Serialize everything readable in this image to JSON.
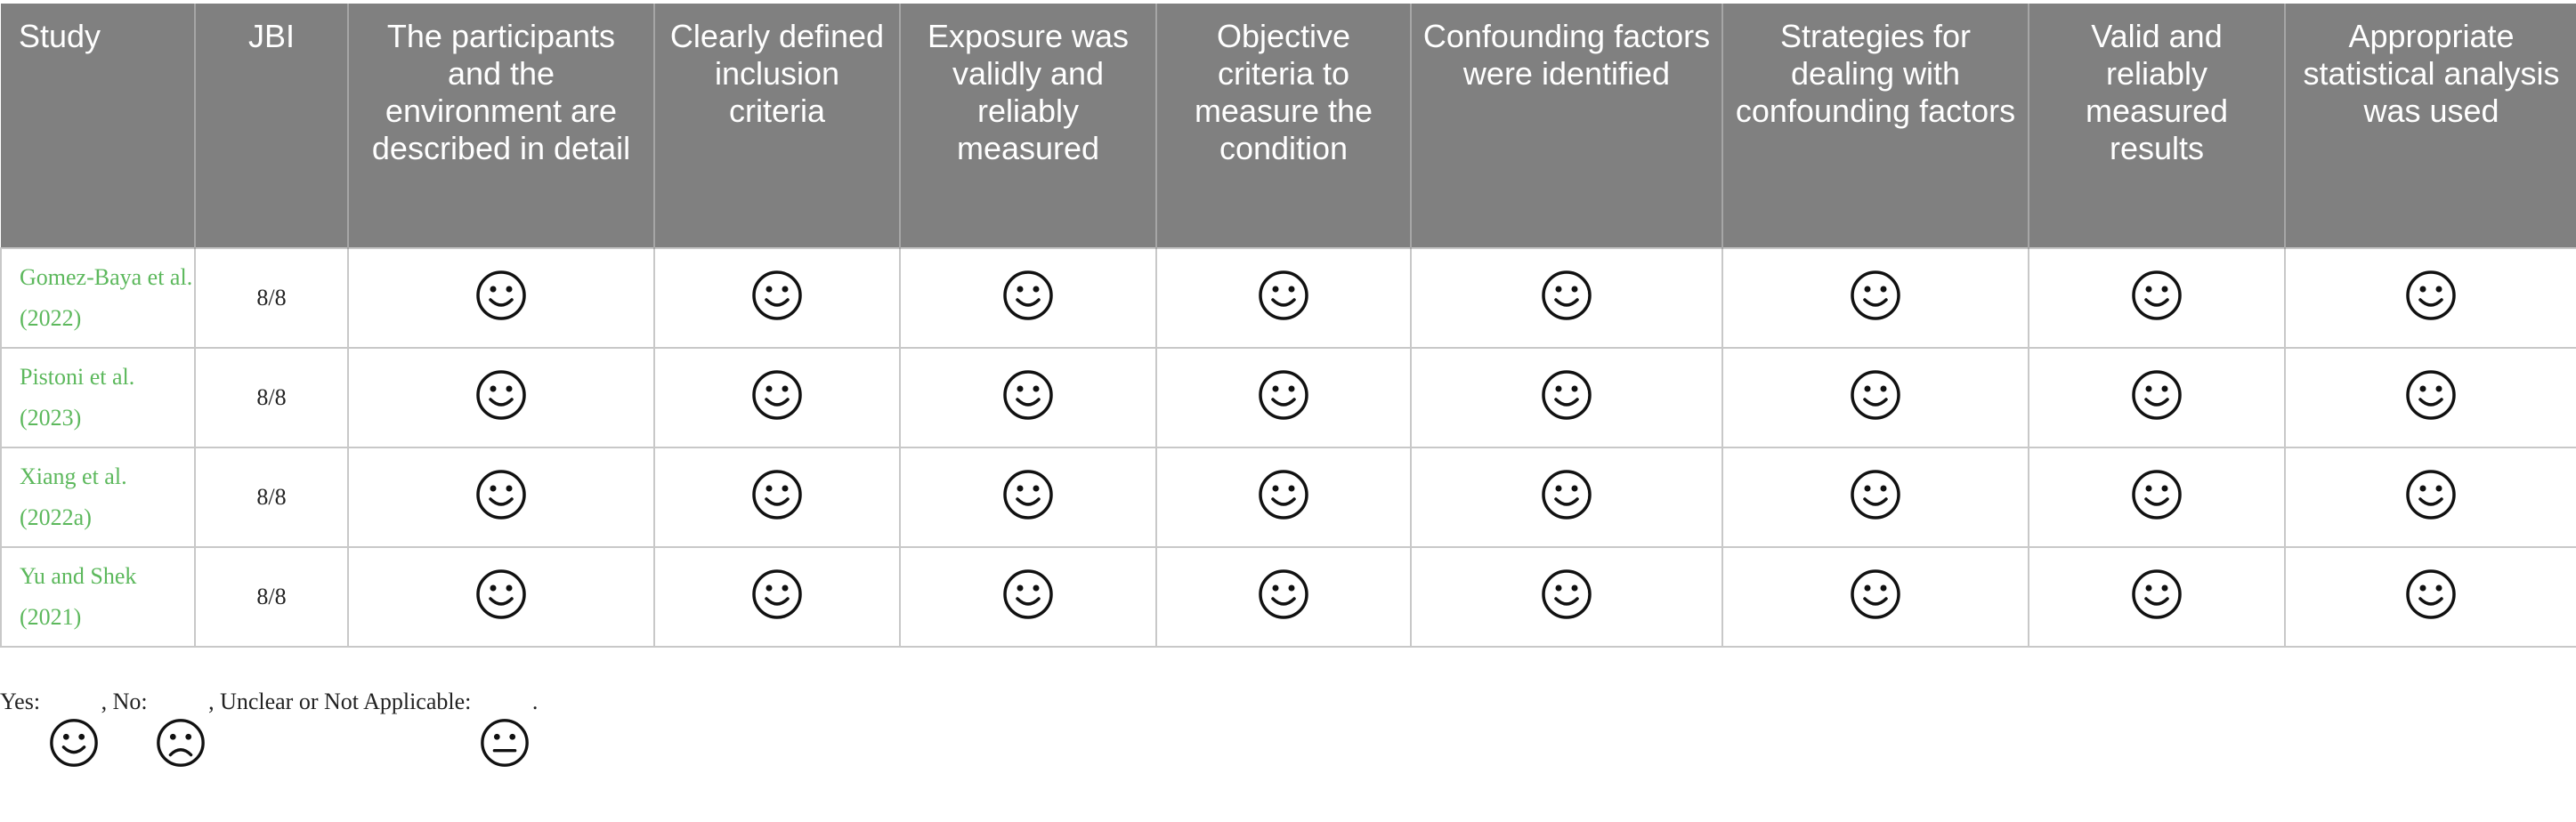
{
  "table": {
    "headers": [
      "Study",
      "JBI",
      "The participants and the environment are described in detail",
      "Clearly defined inclusion criteria",
      "Exposure was validly and reliably measured",
      "Objective criteria to measure the condition",
      "Confounding factors were identified",
      "Strategies for dealing with confounding factors",
      "Valid and reliably measured results",
      "Appropriate statistical analysis was used"
    ],
    "rows": [
      {
        "study": "Gomez-Baya et al. (2022)",
        "jbi": "8/8",
        "ratings": [
          "yes",
          "yes",
          "yes",
          "yes",
          "yes",
          "yes",
          "yes",
          "yes"
        ]
      },
      {
        "study": "Pistoni et al. (2023)",
        "jbi": "8/8",
        "ratings": [
          "yes",
          "yes",
          "yes",
          "yes",
          "yes",
          "yes",
          "yes",
          "yes"
        ]
      },
      {
        "study": "Xiang et al. (2022a)",
        "jbi": "8/8",
        "ratings": [
          "yes",
          "yes",
          "yes",
          "yes",
          "yes",
          "yes",
          "yes",
          "yes"
        ]
      },
      {
        "study": "Yu and Shek (2021)",
        "jbi": "8/8",
        "ratings": [
          "yes",
          "yes",
          "yes",
          "yes",
          "yes",
          "yes",
          "yes",
          "yes"
        ]
      }
    ]
  },
  "legend": {
    "yes_label": "Yes: ",
    "no_label": ", No: ",
    "unclear_label": ", Unclear or Not Applicable: ",
    "end": "."
  },
  "colors": {
    "header_bg": "#808080",
    "study_text": "#5cb85c"
  }
}
